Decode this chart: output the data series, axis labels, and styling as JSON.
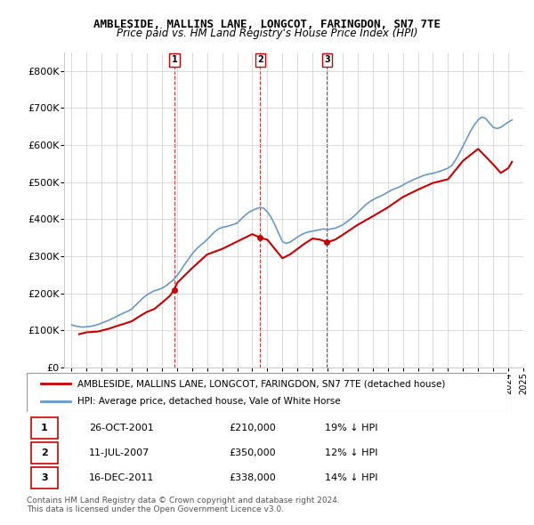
{
  "title1": "AMBLESIDE, MALLINS LANE, LONGCOT, FARINGDON, SN7 7TE",
  "title2": "Price paid vs. HM Land Registry's House Price Index (HPI)",
  "legend_label1": "AMBLESIDE, MALLINS LANE, LONGCOT, FARINGDON, SN7 7TE (detached house)",
  "legend_label2": "HPI: Average price, detached house, Vale of White Horse",
  "line1_color": "#cc0000",
  "line2_color": "#6699cc",
  "sale_color": "#cc0000",
  "vline_color": "#cc0000",
  "ylim": [
    0,
    850000
  ],
  "yticks": [
    0,
    100000,
    200000,
    300000,
    400000,
    500000,
    600000,
    700000,
    800000
  ],
  "ytick_labels": [
    "£0",
    "£100K",
    "£200K",
    "£300K",
    "£400K",
    "£500K",
    "£600K",
    "£700K",
    "£800K"
  ],
  "sales": [
    {
      "date_num": 2001.82,
      "price": 210000,
      "label": "1"
    },
    {
      "date_num": 2007.53,
      "price": 350000,
      "label": "2"
    },
    {
      "date_num": 2011.96,
      "price": 338000,
      "label": "3"
    }
  ],
  "sale_table": [
    {
      "num": "1",
      "date": "26-OCT-2001",
      "price": "£210,000",
      "hpi": "19% ↓ HPI"
    },
    {
      "num": "2",
      "date": "11-JUL-2007",
      "price": "£350,000",
      "hpi": "12% ↓ HPI"
    },
    {
      "num": "3",
      "date": "16-DEC-2011",
      "price": "£338,000",
      "hpi": "14% ↓ HPI"
    }
  ],
  "footer": "Contains HM Land Registry data © Crown copyright and database right 2024.\nThis data is licensed under the Open Government Licence v3.0.",
  "hpi_data": {
    "years": [
      1995.0,
      1995.25,
      1995.5,
      1995.75,
      1996.0,
      1996.25,
      1996.5,
      1996.75,
      1997.0,
      1997.25,
      1997.5,
      1997.75,
      1998.0,
      1998.25,
      1998.5,
      1998.75,
      1999.0,
      1999.25,
      1999.5,
      1999.75,
      2000.0,
      2000.25,
      2000.5,
      2000.75,
      2001.0,
      2001.25,
      2001.5,
      2001.75,
      2002.0,
      2002.25,
      2002.5,
      2002.75,
      2003.0,
      2003.25,
      2003.5,
      2003.75,
      2004.0,
      2004.25,
      2004.5,
      2004.75,
      2005.0,
      2005.25,
      2005.5,
      2005.75,
      2006.0,
      2006.25,
      2006.5,
      2006.75,
      2007.0,
      2007.25,
      2007.5,
      2007.75,
      2008.0,
      2008.25,
      2008.5,
      2008.75,
      2009.0,
      2009.25,
      2009.5,
      2009.75,
      2010.0,
      2010.25,
      2010.5,
      2010.75,
      2011.0,
      2011.25,
      2011.5,
      2011.75,
      2012.0,
      2012.25,
      2012.5,
      2012.75,
      2013.0,
      2013.25,
      2013.5,
      2013.75,
      2014.0,
      2014.25,
      2014.5,
      2014.75,
      2015.0,
      2015.25,
      2015.5,
      2015.75,
      2016.0,
      2016.25,
      2016.5,
      2016.75,
      2017.0,
      2017.25,
      2017.5,
      2017.75,
      2018.0,
      2018.25,
      2018.5,
      2018.75,
      2019.0,
      2019.25,
      2019.5,
      2019.75,
      2020.0,
      2020.25,
      2020.5,
      2020.75,
      2021.0,
      2021.25,
      2021.5,
      2021.75,
      2022.0,
      2022.25,
      2022.5,
      2022.75,
      2023.0,
      2023.25,
      2023.5,
      2023.75,
      2024.0,
      2024.25
    ],
    "values": [
      115000,
      112000,
      110000,
      109000,
      110000,
      111000,
      113000,
      116000,
      120000,
      124000,
      128000,
      133000,
      138000,
      143000,
      148000,
      152000,
      158000,
      168000,
      178000,
      188000,
      196000,
      202000,
      207000,
      210000,
      214000,
      220000,
      228000,
      236000,
      248000,
      262000,
      278000,
      292000,
      306000,
      318000,
      328000,
      336000,
      345000,
      356000,
      366000,
      374000,
      378000,
      380000,
      383000,
      386000,
      390000,
      400000,
      410000,
      418000,
      424000,
      428000,
      432000,
      430000,
      420000,
      405000,
      385000,
      362000,
      340000,
      335000,
      338000,
      345000,
      352000,
      358000,
      363000,
      366000,
      368000,
      370000,
      372000,
      374000,
      372000,
      374000,
      376000,
      380000,
      385000,
      392000,
      400000,
      408000,
      418000,
      428000,
      438000,
      446000,
      452000,
      458000,
      462000,
      467000,
      473000,
      479000,
      483000,
      487000,
      492000,
      498000,
      503000,
      508000,
      512000,
      516000,
      520000,
      522000,
      524000,
      527000,
      530000,
      534000,
      538000,
      545000,
      560000,
      578000,
      598000,
      618000,
      638000,
      655000,
      668000,
      676000,
      672000,
      660000,
      648000,
      645000,
      648000,
      655000,
      662000,
      668000
    ]
  },
  "price_data": {
    "years": [
      1995.5,
      1996.0,
      1996.75,
      1997.5,
      1998.0,
      1998.5,
      1999.0,
      1999.5,
      2000.0,
      2000.5,
      2001.0,
      2001.5,
      2001.82,
      2002.0,
      2002.5,
      2003.0,
      2004.0,
      2005.0,
      2006.0,
      2007.0,
      2007.53,
      2008.0,
      2008.5,
      2009.0,
      2009.5,
      2010.0,
      2010.5,
      2011.0,
      2011.5,
      2011.96,
      2012.5,
      2013.0,
      2014.0,
      2015.0,
      2016.0,
      2017.0,
      2018.0,
      2019.0,
      2020.0,
      2021.0,
      2022.0,
      2023.0,
      2023.5,
      2024.0,
      2024.25
    ],
    "values": [
      90000,
      95000,
      97000,
      105000,
      112000,
      118000,
      125000,
      138000,
      150000,
      158000,
      175000,
      192000,
      210000,
      228000,
      248000,
      268000,
      305000,
      320000,
      340000,
      360000,
      350000,
      345000,
      320000,
      295000,
      305000,
      320000,
      335000,
      348000,
      345000,
      338000,
      345000,
      358000,
      385000,
      408000,
      432000,
      460000,
      480000,
      498000,
      508000,
      558000,
      590000,
      548000,
      525000,
      538000,
      555000
    ]
  }
}
